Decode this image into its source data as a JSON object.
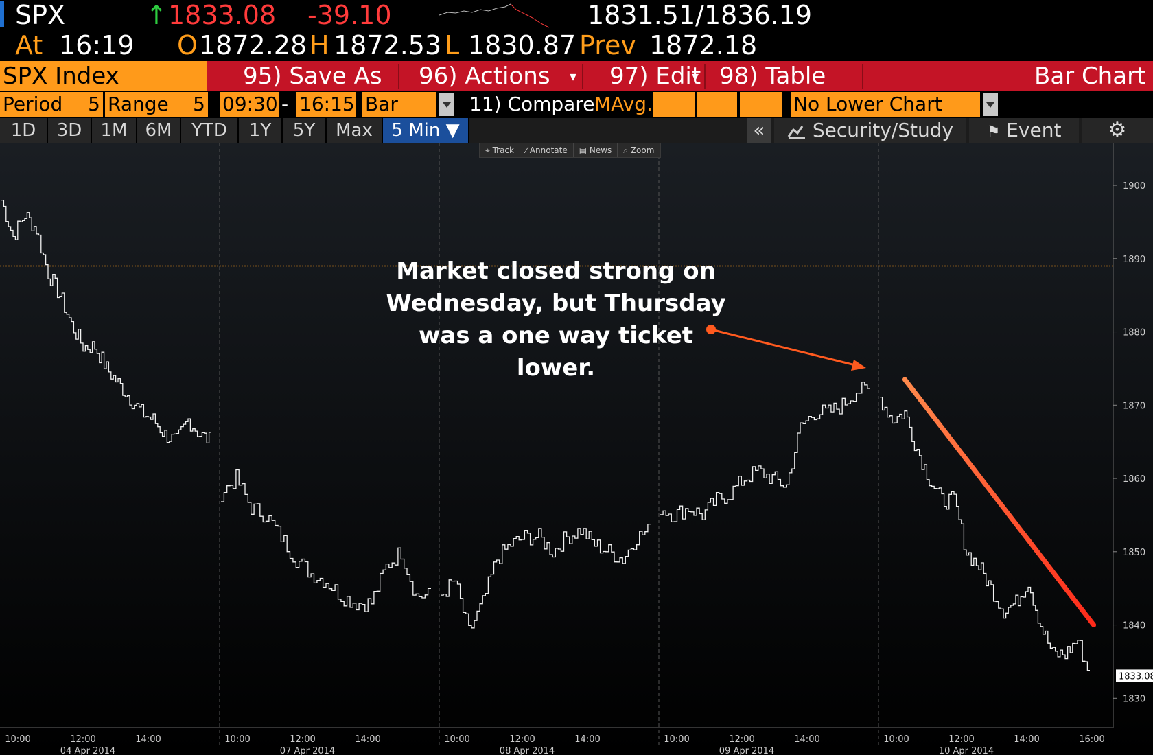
{
  "quote": {
    "ticker": "SPX",
    "arrow": "↑",
    "last": "1833.08",
    "change": "-39.10",
    "bid_ask": "1831.51/1836.19",
    "at_label": "At",
    "time": "16:19",
    "open_label": "O",
    "open": "1872.28",
    "high_label": "H",
    "high": "1872.53",
    "low_label": "L",
    "low": "1830.87",
    "prev_label": "Prev",
    "prev": "1872.18"
  },
  "function_bar": {
    "security": "SPX Index",
    "save_as": "95) Save As",
    "actions": "96) Actions",
    "edit": "97) Edit",
    "table": "98) Table",
    "title": "Bar Chart"
  },
  "settings": {
    "period_label": "Period",
    "period_value": "5",
    "range_label": "Range",
    "range_value": "5",
    "start_time": "09:30",
    "dash": "-",
    "end_time": "16:15",
    "chart_style": "Bar",
    "compare": "11) Compare",
    "mavg": "MAvg.",
    "lower_chart": "No Lower Chart"
  },
  "tabs": [
    "1D",
    "3D",
    "1M",
    "6M",
    "YTD",
    "1Y",
    "5Y",
    "Max",
    "5 Min ▼"
  ],
  "right_tabs": {
    "collapse": "«",
    "security_study": "Security/Study",
    "event": "Event"
  },
  "mini_toolbar": [
    "⌖ Track",
    "⁄ Annotate",
    "▤ News",
    "⌕ Zoom"
  ],
  "annotation": "Market closed strong on Wednesday, but Thursday was a one way ticket lower.",
  "colors": {
    "accent_orange": "#ff9a1a",
    "function_red": "#c41426",
    "active_tab": "#1b4f9c",
    "annotation_arrow": "#ff5a1f"
  },
  "chart_data": {
    "type": "bar",
    "ylim": [
      1826,
      1903
    ],
    "y_ticks": [
      1900,
      1890,
      1880,
      1870,
      1860,
      1850,
      1840,
      1830
    ],
    "last_price": "1833.08",
    "reference_line": 1889,
    "days": [
      "04 Apr 2014",
      "07 Apr 2014",
      "08 Apr 2014",
      "09 Apr 2014",
      "10 Apr 2014"
    ],
    "time_ticks": [
      "10:00",
      "12:00",
      "14:00"
    ],
    "last_time_tick": "16:00",
    "close_path": [
      {
        "day": 0,
        "points": [
          1898,
          1893,
          1896,
          1894,
          1888,
          1885,
          1881,
          1878,
          1878,
          1875,
          1873,
          1871,
          1869,
          1868,
          1866,
          1865,
          1868,
          1866,
          1865
        ]
      },
      {
        "day": 1,
        "points": [
          1858,
          1860,
          1856,
          1855,
          1852,
          1849,
          1847,
          1846,
          1844,
          1843,
          1843,
          1848,
          1850,
          1844,
          1844
        ]
      },
      {
        "day": 2,
        "points": [
          1844,
          1846,
          1839,
          1843,
          1849,
          1851,
          1852,
          1852,
          1850,
          1852,
          1853,
          1851,
          1850,
          1849,
          1852,
          1853
        ]
      },
      {
        "day": 3,
        "points": [
          1856,
          1855,
          1856,
          1855,
          1857,
          1858,
          1860,
          1861,
          1860,
          1859,
          1867,
          1869,
          1869,
          1870,
          1872,
          1872
        ]
      },
      {
        "day": 4,
        "points": [
          1871,
          1868,
          1869,
          1864,
          1860,
          1857,
          1857,
          1850,
          1848,
          1845,
          1842,
          1843,
          1846,
          1840,
          1836,
          1836,
          1838,
          1833
        ]
      }
    ],
    "trend_line": {
      "start": {
        "day": 4,
        "frac": 0.12,
        "value": 1873.5
      },
      "end": {
        "day": 4,
        "frac": 0.98,
        "value": 1840
      }
    }
  }
}
